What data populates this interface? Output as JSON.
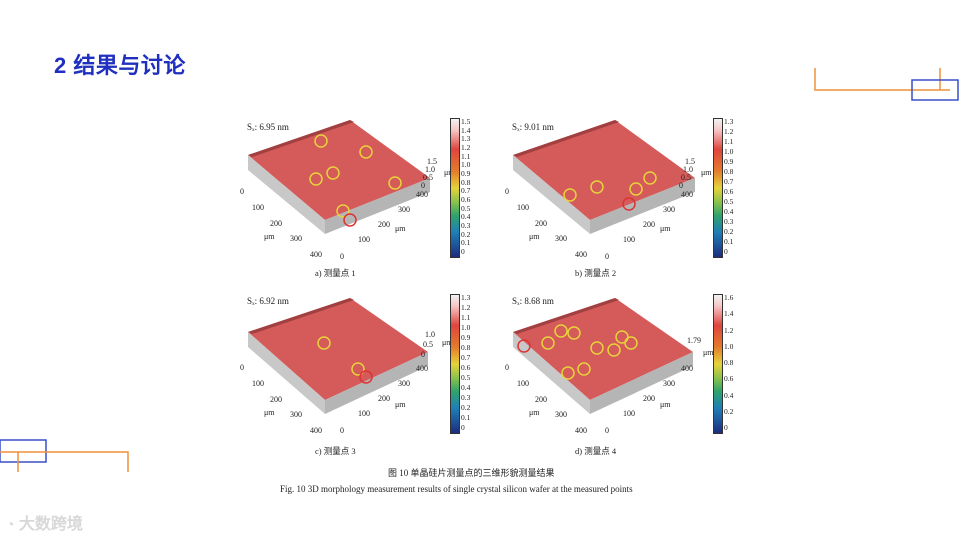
{
  "slide": {
    "title": "2 结果与讨论"
  },
  "colors": {
    "title": "#1f2fbf",
    "deco_orange": "#f0913a",
    "deco_blue": "#3a4fc8"
  },
  "panels": [
    {
      "sq": "Sₓ: 6.95 nm",
      "caption": "a) 测量点 1",
      "ztick": [
        "1.5",
        "1.0",
        "0.5",
        "0"
      ],
      "zunit": "μm",
      "cbar": [
        "1.5",
        "1.4",
        "1.3",
        "1.2",
        "1.1",
        "1.0",
        "0.9",
        "0.8",
        "0.7",
        "0.6",
        "0.5",
        "0.4",
        "0.3",
        "0.2",
        "0.1",
        "0"
      ],
      "xticks": [
        "0",
        "100",
        "200",
        "300",
        "400"
      ],
      "yticks": [
        "400",
        "300",
        "200",
        "100",
        "0"
      ],
      "xunit": "μm",
      "yunit": "μm"
    },
    {
      "sq": "Sₓ: 9.01 nm",
      "caption": "b) 测量点 2",
      "ztick": [
        "1.5",
        "1.0",
        "0.5",
        "0"
      ],
      "zunit": "μm",
      "cbar": [
        "1.3",
        "1.2",
        "1.1",
        "1.0",
        "0.9",
        "0.8",
        "0.7",
        "0.6",
        "0.5",
        "0.4",
        "0.3",
        "0.2",
        "0.1",
        "0"
      ],
      "xticks": [
        "0",
        "100",
        "200",
        "300",
        "400"
      ],
      "yticks": [
        "400",
        "300",
        "200",
        "100",
        "0"
      ],
      "xunit": "μm",
      "yunit": "μm"
    },
    {
      "sq": "Sₓ: 6.92 nm",
      "caption": "c) 测量点 3",
      "ztick": [
        "1.0",
        "0.5",
        "0"
      ],
      "zunit": "μm",
      "cbar": [
        "1.3",
        "1.2",
        "1.1",
        "1.0",
        "0.9",
        "0.8",
        "0.7",
        "0.6",
        "0.5",
        "0.4",
        "0.3",
        "0.2",
        "0.1",
        "0"
      ],
      "xticks": [
        "0",
        "100",
        "200",
        "300",
        "400"
      ],
      "yticks": [
        "400",
        "300",
        "200",
        "100",
        "0"
      ],
      "xunit": "μm",
      "yunit": "μm"
    },
    {
      "sq": "Sₓ: 8.68 nm",
      "caption": "d) 测量点 4",
      "ztick": [
        "1.79"
      ],
      "zunit": "μm",
      "cbar": [
        "1.6",
        "1.4",
        "1.2",
        "1.0",
        "0.8",
        "0.6",
        "0.4",
        "0.2",
        "0"
      ],
      "xticks": [
        "0",
        "100",
        "200",
        "300",
        "400"
      ],
      "yticks": [
        "400",
        "300",
        "200",
        "100",
        "0"
      ],
      "xunit": "μm",
      "yunit": "μm"
    }
  ],
  "figure": {
    "caption_cn": "图 10    单晶硅片测量点的三维形貌测量结果",
    "caption_en": "Fig. 10    3D morphology measurement results of single crystal silicon wafer at the measured points"
  },
  "watermark": "大数跨境"
}
